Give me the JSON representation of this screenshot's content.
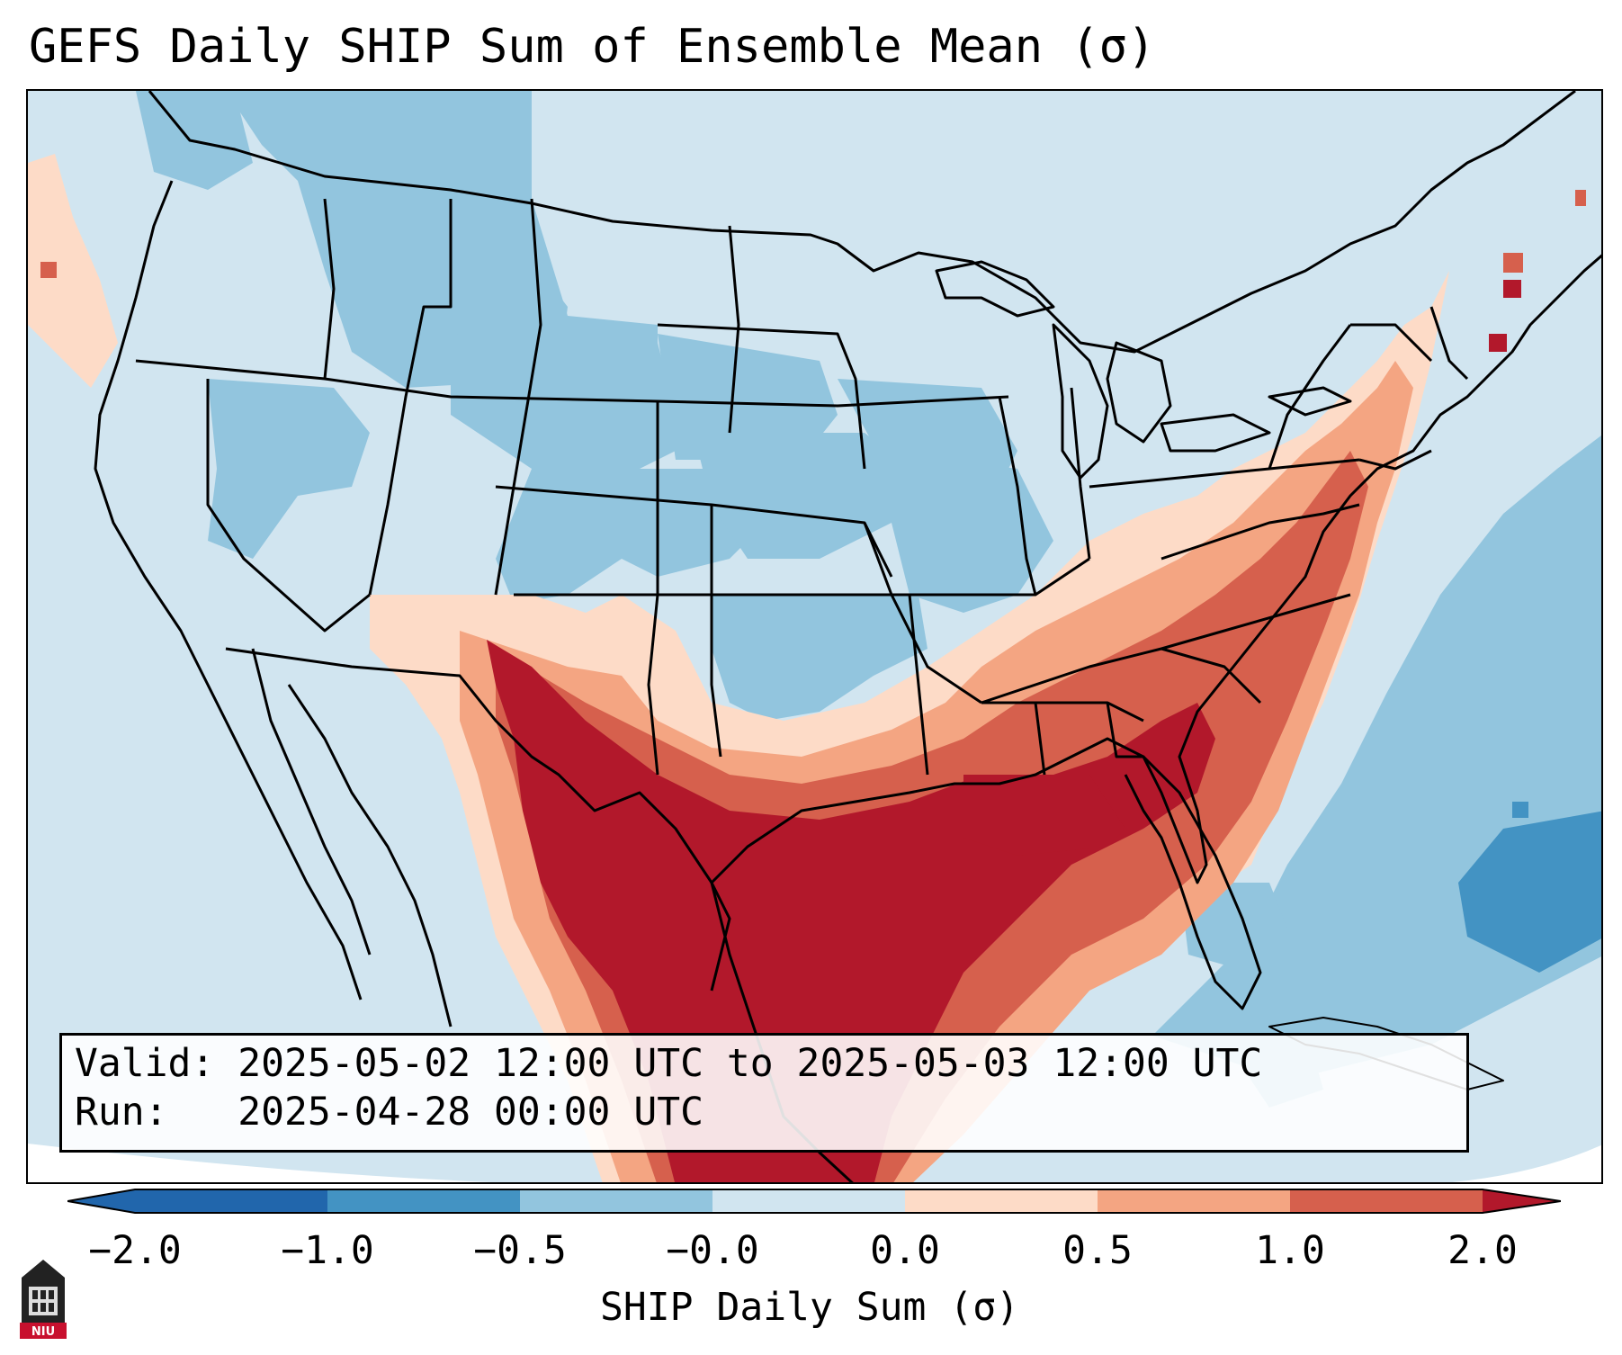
{
  "title": "GEFS Daily SHIP Sum of Ensemble Mean (σ)",
  "info": {
    "valid_label": "Valid:",
    "valid_value": "2025-05-02 12:00 UTC to 2025-05-03 12:00 UTC",
    "run_label": "Run:",
    "run_value": "2025-04-28 00:00 UTC"
  },
  "colorbar": {
    "label": "SHIP Daily Sum (σ)",
    "ticks": [
      "−2.0",
      "−1.0",
      "−0.5",
      "−0.0",
      "0.0",
      "0.5",
      "1.0",
      "2.0"
    ],
    "bin_colors": [
      "#2166ac",
      "#4393c3",
      "#92c5de",
      "#d1e5f0",
      "#fddbc7",
      "#f4a582",
      "#d6604d",
      "#b2182b"
    ],
    "extend": "both"
  },
  "map": {
    "region": "Continental United States",
    "background_color": "#d1e5f0",
    "high_color": "#b2182b"
  },
  "logo": {
    "text": "NIU"
  }
}
